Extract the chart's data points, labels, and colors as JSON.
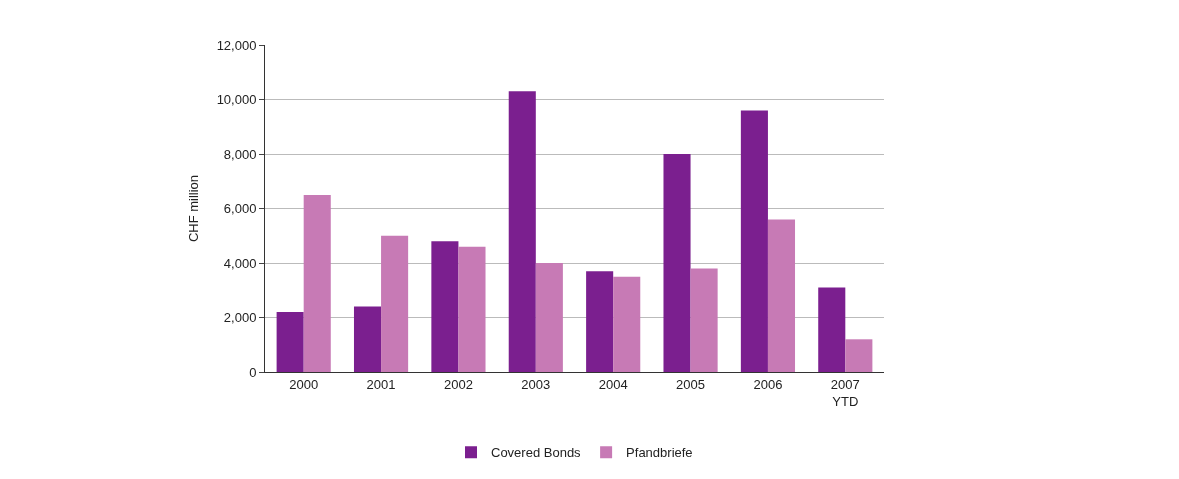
{
  "chart_data": {
    "type": "bar",
    "ylabel": "CHF million",
    "categories": [
      "2000",
      "2001",
      "2002",
      "2003",
      "2004",
      "2005",
      "2006",
      "2007\nYTD"
    ],
    "series": [
      {
        "name": "Covered Bonds",
        "color": "#7b1f8f",
        "values": [
          2200,
          2400,
          4800,
          10300,
          3700,
          8000,
          9600,
          3100
        ]
      },
      {
        "name": "Pfandbriefe",
        "color": "#c77ab5",
        "values": [
          6500,
          5000,
          4600,
          4000,
          3500,
          3800,
          5600,
          1200
        ]
      }
    ],
    "ylim": [
      0,
      12000
    ],
    "yticks": [
      {
        "value": 0,
        "label": "0"
      },
      {
        "value": 2000,
        "label": "2,000"
      },
      {
        "value": 4000,
        "label": "4,000"
      },
      {
        "value": 6000,
        "label": "6,000"
      },
      {
        "value": 8000,
        "label": "8,000"
      },
      {
        "value": 10000,
        "label": "10,000"
      },
      {
        "value": 12000,
        "label": "12,000"
      }
    ],
    "grid": "y",
    "legend": "bottom"
  }
}
